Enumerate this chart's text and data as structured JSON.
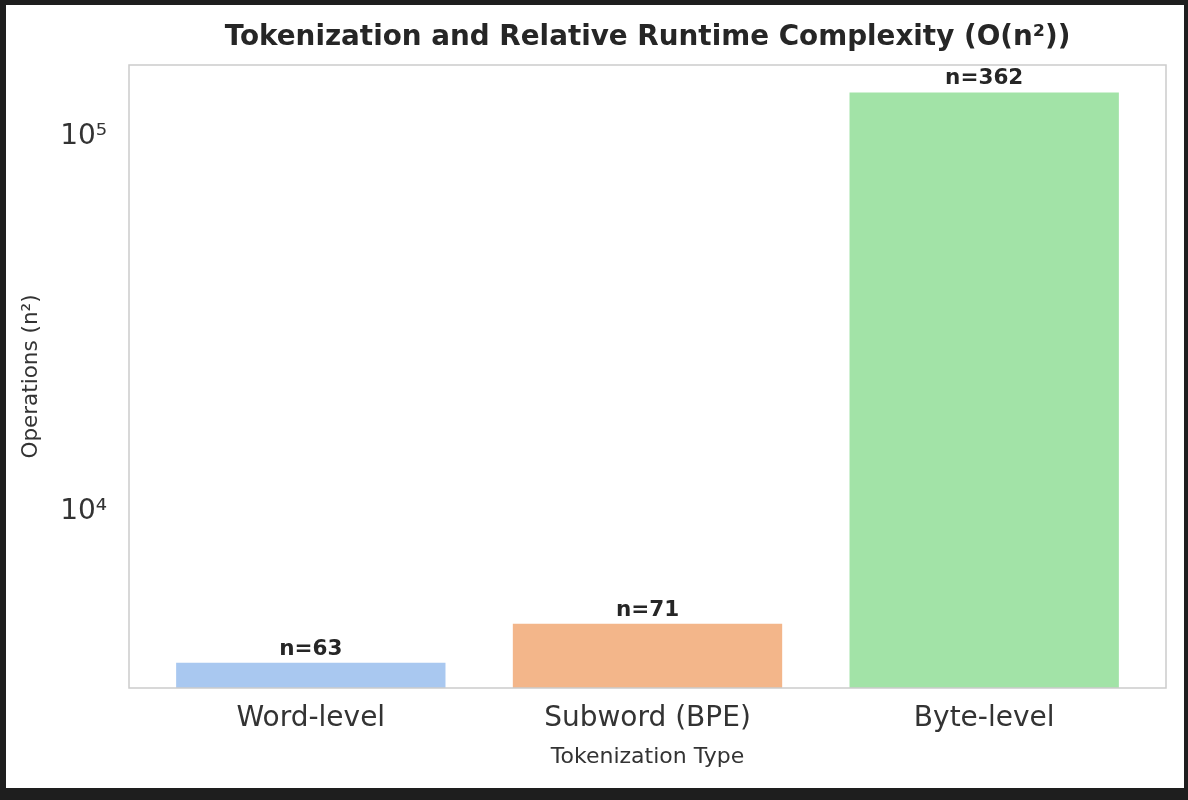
{
  "chart_data": {
    "type": "bar",
    "title": "Tokenization and Relative Runtime Complexity (O(n²))",
    "xlabel": "Tokenization Type",
    "ylabel": "Operations (n²)",
    "categories": [
      "Word-level",
      "Subword (BPE)",
      "Byte-level"
    ],
    "values": [
      3969,
      5041,
      131044
    ],
    "colors": [
      "#a9c8f0",
      "#f3b68a",
      "#a2e3a7"
    ],
    "annotations": [
      {
        "text": "n=63",
        "x": "Word-level",
        "y": 3969
      },
      {
        "text": "n=71",
        "x": "Subword (BPE)",
        "y": 5041
      },
      {
        "text": "n=362",
        "x": "Byte-level",
        "y": 131044
      }
    ],
    "log": "y",
    "ylim": [
      3400,
      155000
    ],
    "yticks": [
      {
        "value": 10000,
        "label": "10⁴"
      },
      {
        "value": 100000,
        "label": "10⁵"
      }
    ],
    "grid": false
  }
}
